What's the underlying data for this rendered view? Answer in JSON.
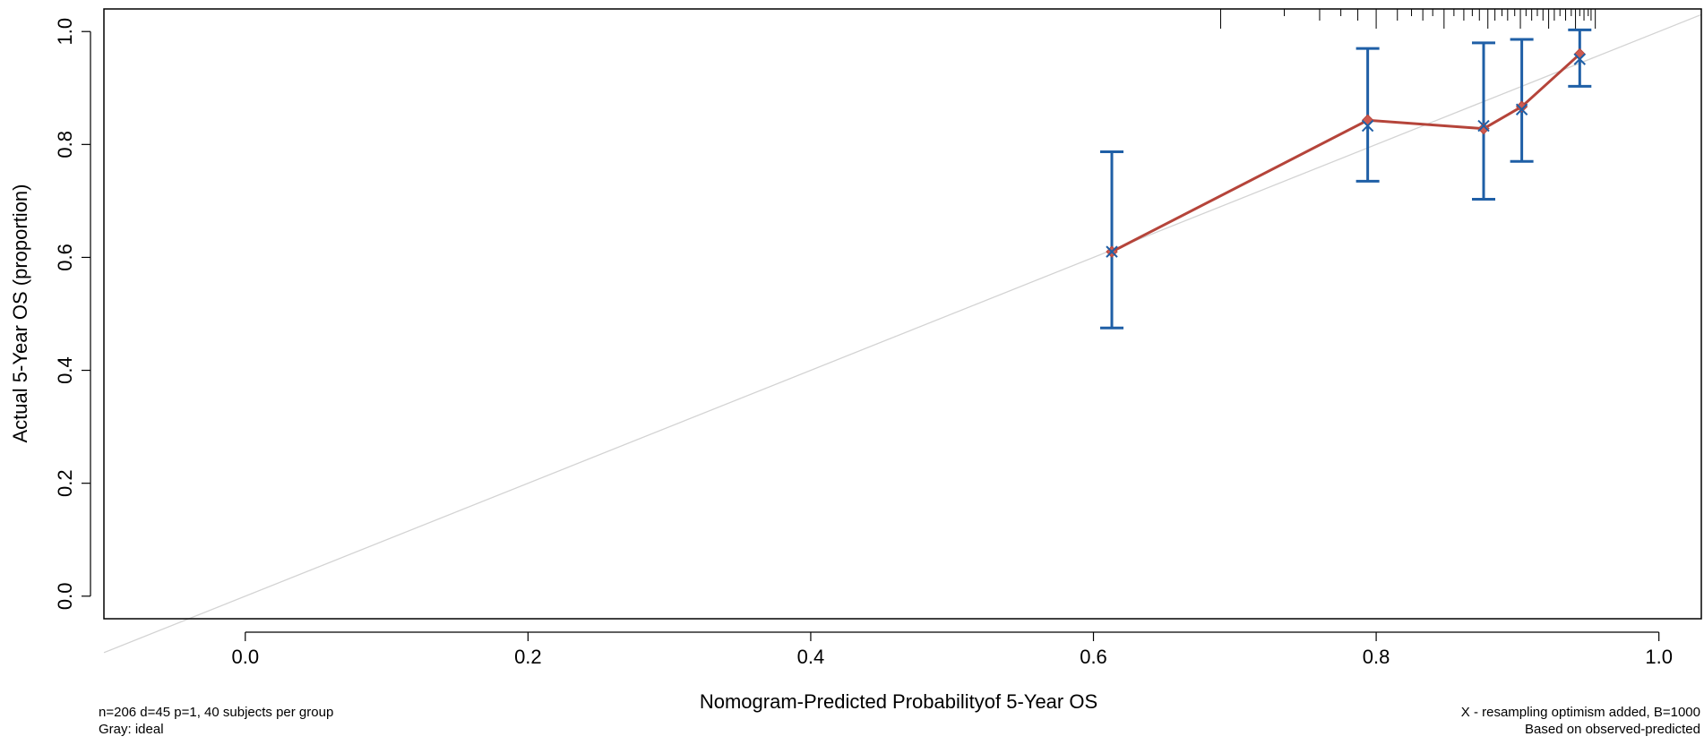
{
  "chart_data": {
    "type": "scatter",
    "xlabel": "Nomogram-Predicted Probabilityof 5-Year OS",
    "ylabel": "Actual 5-Year OS (proportion)",
    "xlim": [
      -0.1,
      1.03
    ],
    "ylim": [
      -0.04,
      1.04
    ],
    "x_ticks": [
      "0.0",
      "0.2",
      "0.4",
      "0.6",
      "0.8",
      "1.0"
    ],
    "y_ticks": [
      "0.0",
      "0.2",
      "0.4",
      "0.6",
      "0.8",
      "1.0"
    ],
    "grid": false,
    "ideal_line": {
      "x": [
        -0.1,
        1.03
      ],
      "y": [
        -0.1,
        1.03
      ],
      "color": "#d3d3d3"
    },
    "series": [
      {
        "marker": "diamond",
        "color": "#b5443a",
        "x": [
          0.613,
          0.794,
          0.876,
          0.903,
          0.944
        ],
        "y": [
          0.61,
          0.843,
          0.828,
          0.867,
          0.96
        ]
      },
      {
        "marker": "x",
        "color": "#1f5fa6",
        "x": [
          0.613,
          0.794,
          0.876,
          0.903,
          0.944
        ],
        "y": [
          0.61,
          0.833,
          0.833,
          0.862,
          0.951
        ]
      }
    ],
    "error_bars": {
      "color": "#1f5fa6",
      "x": [
        0.613,
        0.794,
        0.876,
        0.903,
        0.944
      ],
      "lower": [
        0.475,
        0.735,
        0.703,
        0.77,
        0.903
      ],
      "upper": [
        0.787,
        0.97,
        0.98,
        0.986,
        1.003
      ]
    },
    "rug_x": [
      0.69,
      0.735,
      0.76,
      0.775,
      0.787,
      0.8,
      0.815,
      0.825,
      0.833,
      0.84,
      0.848,
      0.855,
      0.862,
      0.868,
      0.873,
      0.879,
      0.884,
      0.889,
      0.893,
      0.898,
      0.902,
      0.906,
      0.91,
      0.914,
      0.918,
      0.922,
      0.926,
      0.93,
      0.934,
      0.938,
      0.941,
      0.944,
      0.947,
      0.95,
      0.952,
      0.955
    ]
  },
  "footer": {
    "left_line1": "n=206 d=45 p=1, 40 subjects per group",
    "left_line2": "Gray: ideal",
    "right_line1": "X - resampling optimism added, B=1000",
    "right_line2": "Based on observed-predicted"
  }
}
